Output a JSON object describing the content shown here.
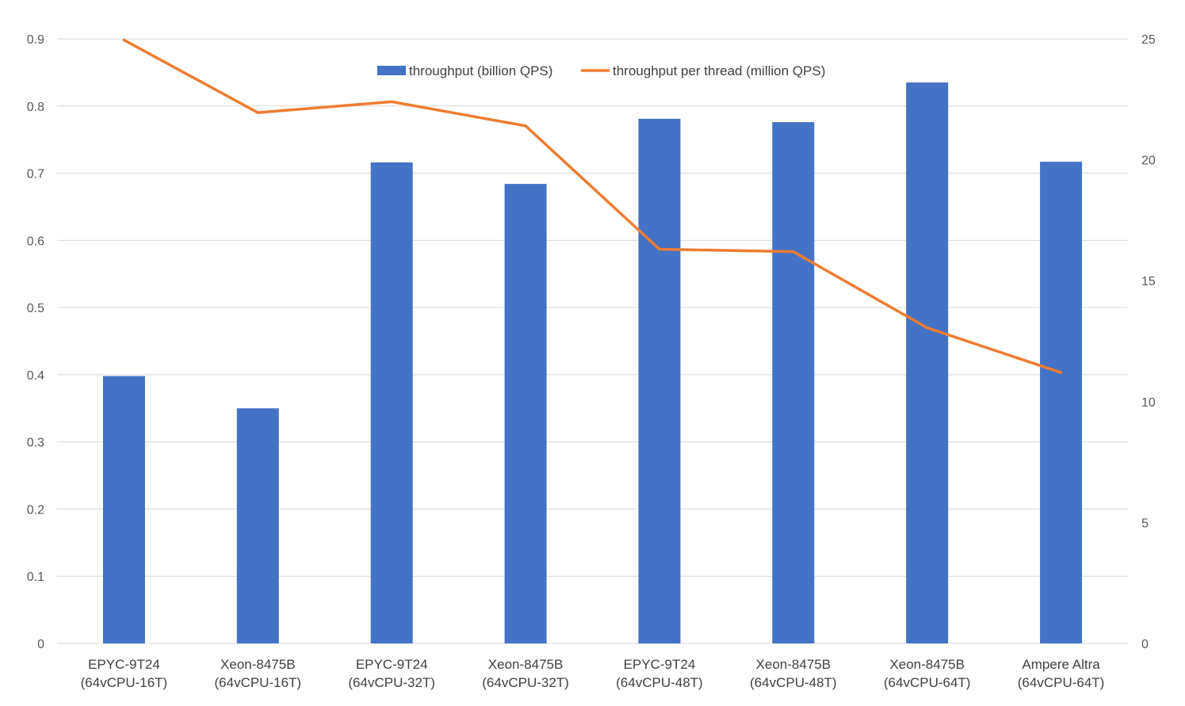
{
  "chart_data": {
    "type": "bar",
    "title": "",
    "xlabel": "",
    "ylabel": "",
    "ylabel_right": "",
    "categories": [
      [
        "EPYC-9T24",
        "(64vCPU-16T)"
      ],
      [
        "Xeon-8475B",
        "(64vCPU-16T)"
      ],
      [
        "EPYC-9T24",
        "(64vCPU-32T)"
      ],
      [
        "Xeon-8475B",
        "(64vCPU-32T)"
      ],
      [
        "EPYC-9T24",
        "(64vCPU-48T)"
      ],
      [
        "Xeon-8475B",
        "(64vCPU-48T)"
      ],
      [
        "Xeon-8475B",
        "(64vCPU-64T)"
      ],
      [
        "Ampere Altra",
        "(64vCPU-64T)"
      ]
    ],
    "ylim": [
      0,
      0.9
    ],
    "ylim_right": [
      0,
      25
    ],
    "yticks": [
      "0",
      "0.1",
      "0.2",
      "0.3",
      "0.4",
      "0.5",
      "0.6",
      "0.7",
      "0.8",
      "0.9"
    ],
    "yticks_right": [
      "0",
      "5",
      "10",
      "15",
      "20",
      "25"
    ],
    "grid": true,
    "legend_position": "top-center",
    "series": [
      {
        "name": "throughput (billion QPS)",
        "type": "bar",
        "axis": "left",
        "color": "#4472c4",
        "values": [
          0.398,
          0.35,
          0.716,
          0.684,
          0.781,
          0.776,
          0.835,
          0.717
        ]
      },
      {
        "name": "throughput per thread (million QPS)",
        "type": "line",
        "axis": "right",
        "color": "#ed7d31",
        "values": [
          24.95,
          21.95,
          22.4,
          21.4,
          16.3,
          16.2,
          13.05,
          11.2
        ]
      }
    ]
  }
}
